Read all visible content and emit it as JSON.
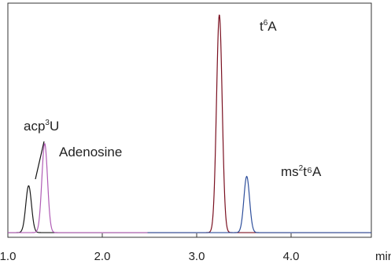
{
  "chart_data": {
    "type": "line",
    "title": "",
    "xlabel": "min",
    "ylabel": "",
    "xlim": [
      1.0,
      4.85
    ],
    "ylim": [
      0,
      1
    ],
    "grid": false,
    "x_ticks": [
      "1.0",
      "2.0",
      "3.0",
      "4.0"
    ],
    "baseline": 0.02,
    "colors": {
      "acp3U": "#1a1a1a",
      "Adenosine": "#b05cb5",
      "t6A": "#7a1020",
      "ms2t6A": "#2e4f9c"
    },
    "peaks": [
      {
        "label_main": "acp",
        "label_sup": "3",
        "label_tail": "U",
        "color": "acp3U",
        "center": 1.22,
        "height": 0.2,
        "width": 0.03,
        "range": [
          1.0,
          2.48
        ]
      },
      {
        "label_main": "Adenosine",
        "label_sup": "",
        "label_tail": "",
        "color": "Adenosine",
        "center": 1.39,
        "height": 0.38,
        "width": 0.03,
        "range": [
          1.0,
          2.48
        ]
      },
      {
        "label_main": "t",
        "label_sup": "6",
        "label_tail": "A",
        "color": "t6A",
        "center": 3.24,
        "height": 0.93,
        "width": 0.03,
        "range": [
          2.48,
          4.85
        ]
      },
      {
        "label_main": "ms",
        "label_sup": "2",
        "label_tail": "t⁶A",
        "color": "ms2t6A",
        "center": 3.53,
        "height": 0.24,
        "width": 0.03,
        "range": [
          2.48,
          4.85
        ]
      }
    ]
  }
}
